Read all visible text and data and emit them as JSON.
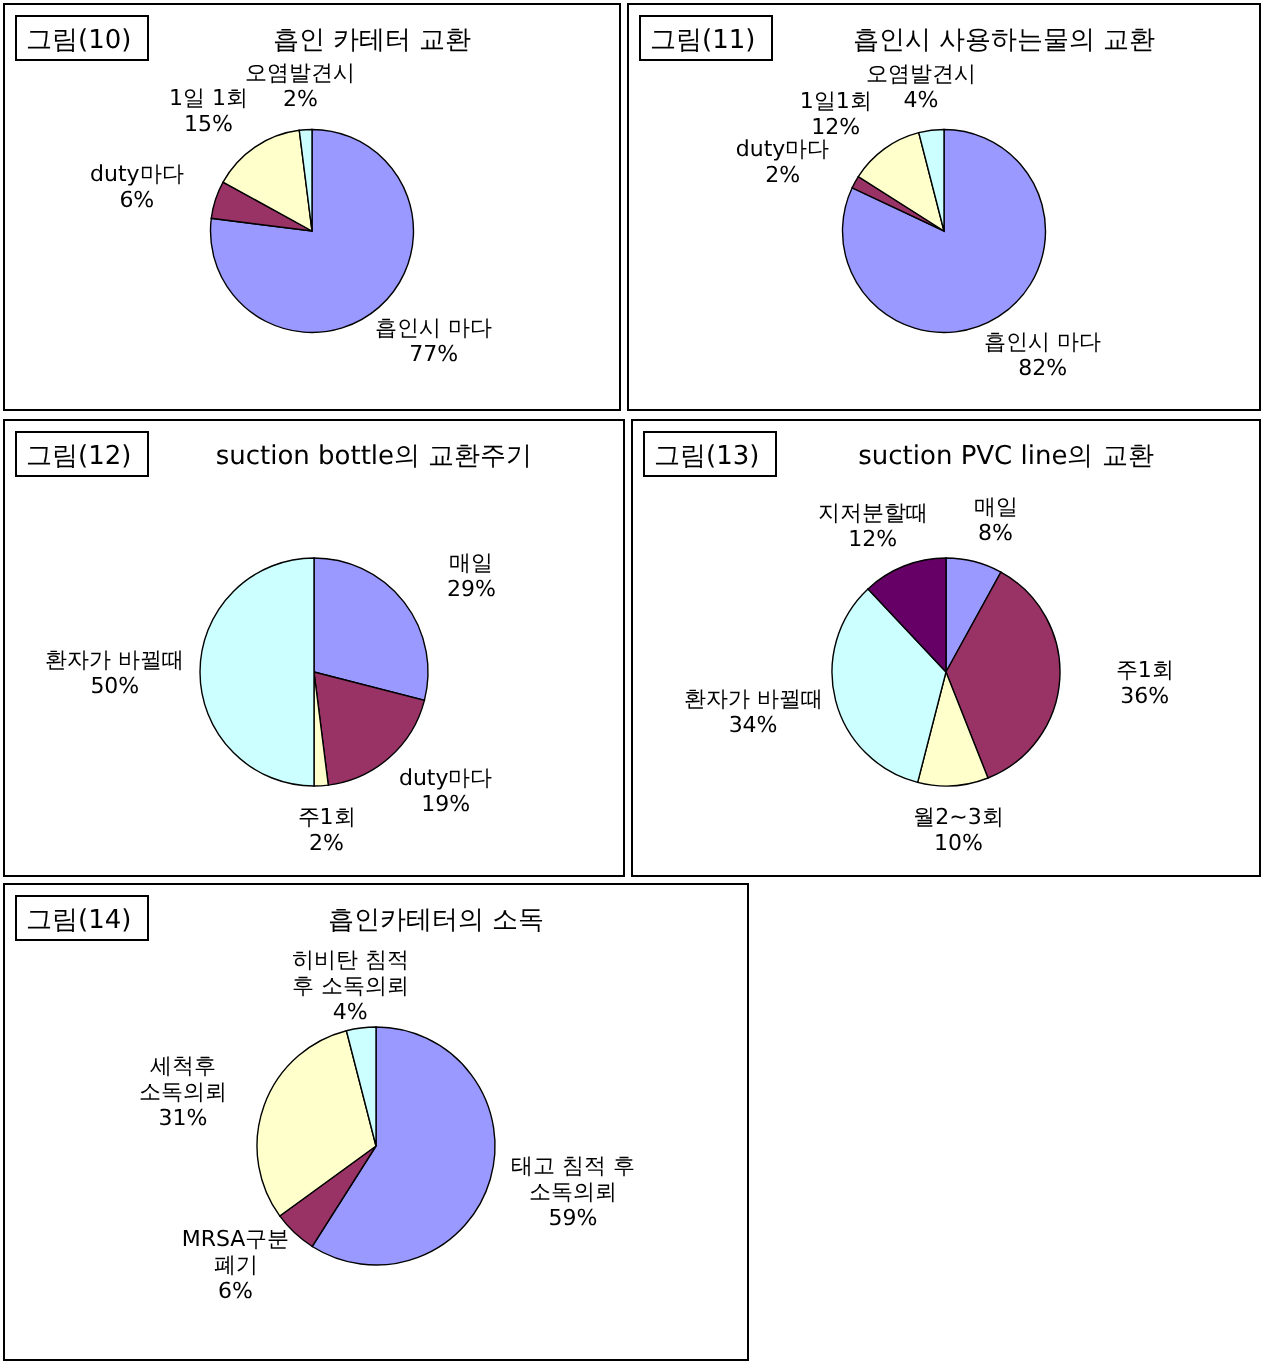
{
  "chart_data": [
    {
      "type": "pie",
      "title": "흡인 카테터 교환",
      "annotations": [
        "그림(10)"
      ],
      "categories": [
        "흡인시 마다",
        "duty마다",
        "1일 1회",
        "오염발견시"
      ],
      "values": [
        77,
        6,
        15,
        2
      ],
      "value_labels": [
        "77%",
        "6%",
        "15%",
        "2%"
      ],
      "colors": [
        "#9999ff",
        "#993366",
        "#ffffcc",
        "#ccffff"
      ]
    },
    {
      "type": "pie",
      "title": "흡인시 사용하는물의 교환",
      "annotations": [
        "그림(11)"
      ],
      "categories": [
        "흡인시 마다",
        "duty마다",
        "1일1회",
        "오염발견시"
      ],
      "values": [
        82,
        2,
        12,
        4
      ],
      "value_labels": [
        "82%",
        "2%",
        "12%",
        "4%"
      ],
      "colors": [
        "#9999ff",
        "#993366",
        "#ffffcc",
        "#ccffff"
      ]
    },
    {
      "type": "pie",
      "title": "suction bottle의 교환주기",
      "annotations": [
        "그림(12)"
      ],
      "categories": [
        "매일",
        "duty마다",
        "주1회",
        "환자가 바뀔때"
      ],
      "values": [
        29,
        19,
        2,
        50
      ],
      "value_labels": [
        "29%",
        "19%",
        "2%",
        "50%"
      ],
      "colors": [
        "#9999ff",
        "#993366",
        "#ffffcc",
        "#ccffff"
      ]
    },
    {
      "type": "pie",
      "title": "suction PVC line의 교환",
      "annotations": [
        "그림(13)"
      ],
      "categories": [
        "매일",
        "주1회",
        "월2~3회",
        "환자가 바뀔때",
        "지저분할때"
      ],
      "values": [
        8,
        36,
        10,
        34,
        12
      ],
      "value_labels": [
        "8%",
        "36%",
        "10%",
        "34%",
        "12%"
      ],
      "colors": [
        "#9999ff",
        "#993366",
        "#ffffcc",
        "#ccffff",
        "#660066"
      ]
    },
    {
      "type": "pie",
      "title": "흡인카테터의 소독",
      "annotations": [
        "그림(14)"
      ],
      "categories": [
        "태고 침적 후 소독의뢰",
        "MRSA구분 폐기",
        "세척후 소독의뢰",
        "히비탄 침적 후 소독의뢰"
      ],
      "values": [
        59,
        6,
        31,
        4
      ],
      "value_labels": [
        "59%",
        "6%",
        "31%",
        "4%"
      ],
      "colors": [
        "#9999ff",
        "#993366",
        "#ffffcc",
        "#ccffff"
      ]
    }
  ]
}
